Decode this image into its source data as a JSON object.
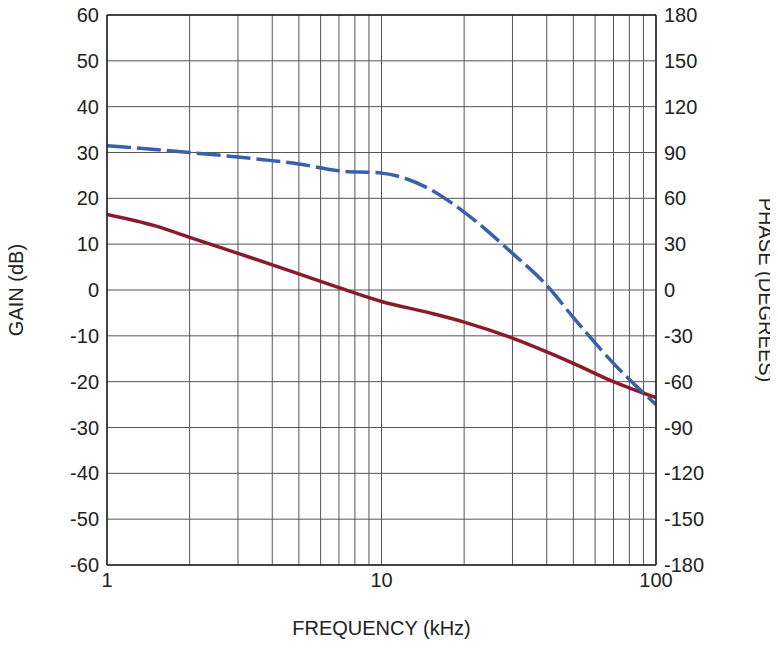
{
  "chart_data": {
    "type": "line",
    "xlabel": "FREQUENCY (kHz)",
    "ylabel": "GAIN (dB)",
    "y2label": "PHASE (DEGREES)",
    "log": "x",
    "grid": true,
    "xlim": [
      1,
      100
    ],
    "xticks": [
      1,
      10,
      100
    ],
    "ylim": [
      -60,
      60
    ],
    "yticks": [
      -60,
      -50,
      -40,
      -30,
      -20,
      -10,
      0,
      10,
      20,
      30,
      40,
      50,
      60
    ],
    "y2lim": [
      -180,
      180
    ],
    "y2ticks": [
      -180,
      -150,
      -120,
      -90,
      -60,
      -30,
      0,
      30,
      60,
      90,
      120,
      150,
      180
    ],
    "series": [
      {
        "color": "#8b1a2b",
        "line_style": "solid",
        "x": [
          1,
          1.5,
          2,
          3,
          4,
          5,
          7,
          10,
          15,
          20,
          30,
          40,
          50,
          70,
          100
        ],
        "values": [
          16.5,
          14,
          11.5,
          8,
          5.5,
          3.5,
          0.5,
          -2.5,
          -5,
          -7,
          -10.5,
          -13.5,
          -16,
          -20,
          -23.5
        ]
      },
      {
        "color": "#3a5fad",
        "line_style": "dashed",
        "axis": "y2",
        "x": [
          1,
          2,
          3,
          5,
          7,
          10,
          12,
          15,
          20,
          30,
          40,
          50,
          70,
          100
        ],
        "values": [
          94.5,
          90,
          87,
          82.5,
          78,
          76.5,
          73.5,
          66,
          51,
          24,
          3,
          -18,
          -48,
          -75
        ]
      }
    ]
  }
}
